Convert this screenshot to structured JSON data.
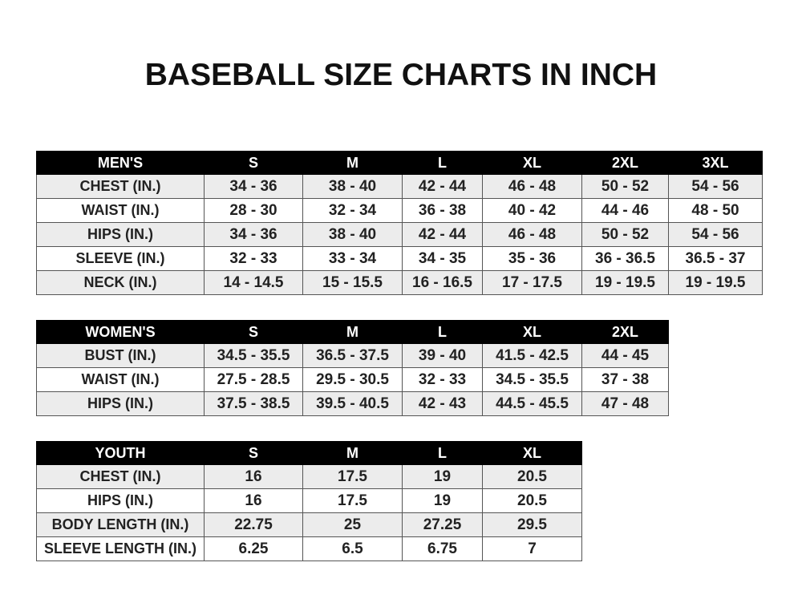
{
  "title": "BASEBALL SIZE CHARTS IN INCH",
  "mens": {
    "header": [
      "MEN'S",
      "S",
      "M",
      "L",
      "XL",
      "2XL",
      "3XL"
    ],
    "rows": [
      [
        "CHEST (IN.)",
        "34 - 36",
        "38 - 40",
        "42 - 44",
        "46 - 48",
        "50 - 52",
        "54 - 56"
      ],
      [
        "WAIST (IN.)",
        "28 - 30",
        "32 - 34",
        "36 - 38",
        "40 - 42",
        "44 - 46",
        "48 - 50"
      ],
      [
        "HIPS (IN.)",
        "34 - 36",
        "38 - 40",
        "42 - 44",
        "46 - 48",
        "50 - 52",
        "54 - 56"
      ],
      [
        "SLEEVE (IN.)",
        "32 - 33",
        "33 - 34",
        "34 - 35",
        "35 - 36",
        "36 - 36.5",
        "36.5 - 37"
      ],
      [
        "NECK (IN.)",
        "14 - 14.5",
        "15 - 15.5",
        "16 - 16.5",
        "17 - 17.5",
        "19 - 19.5",
        "19 - 19.5"
      ]
    ]
  },
  "womens": {
    "header": [
      "WOMEN'S",
      "S",
      "M",
      "L",
      "XL",
      "2XL"
    ],
    "rows": [
      [
        "BUST (IN.)",
        "34.5 - 35.5",
        "36.5 - 37.5",
        "39 - 40",
        "41.5 - 42.5",
        "44 - 45"
      ],
      [
        "WAIST (IN.)",
        "27.5 - 28.5",
        "29.5 - 30.5",
        "32 - 33",
        "34.5 - 35.5",
        "37 - 38"
      ],
      [
        "HIPS (IN.)",
        "37.5 - 38.5",
        "39.5 - 40.5",
        "42 - 43",
        "44.5 - 45.5",
        "47 - 48"
      ]
    ]
  },
  "youth": {
    "header": [
      "YOUTH",
      "S",
      "M",
      "L",
      "XL"
    ],
    "rows": [
      [
        "CHEST (IN.)",
        "16",
        "17.5",
        "19",
        "20.5"
      ],
      [
        "HIPS (IN.)",
        "16",
        "17.5",
        "19",
        "20.5"
      ],
      [
        "BODY LENGTH (IN.)",
        "22.75",
        "25",
        "27.25",
        "29.5"
      ],
      [
        "SLEEVE LENGTH (IN.)",
        "6.25",
        "6.5",
        "6.75",
        "7"
      ]
    ]
  }
}
